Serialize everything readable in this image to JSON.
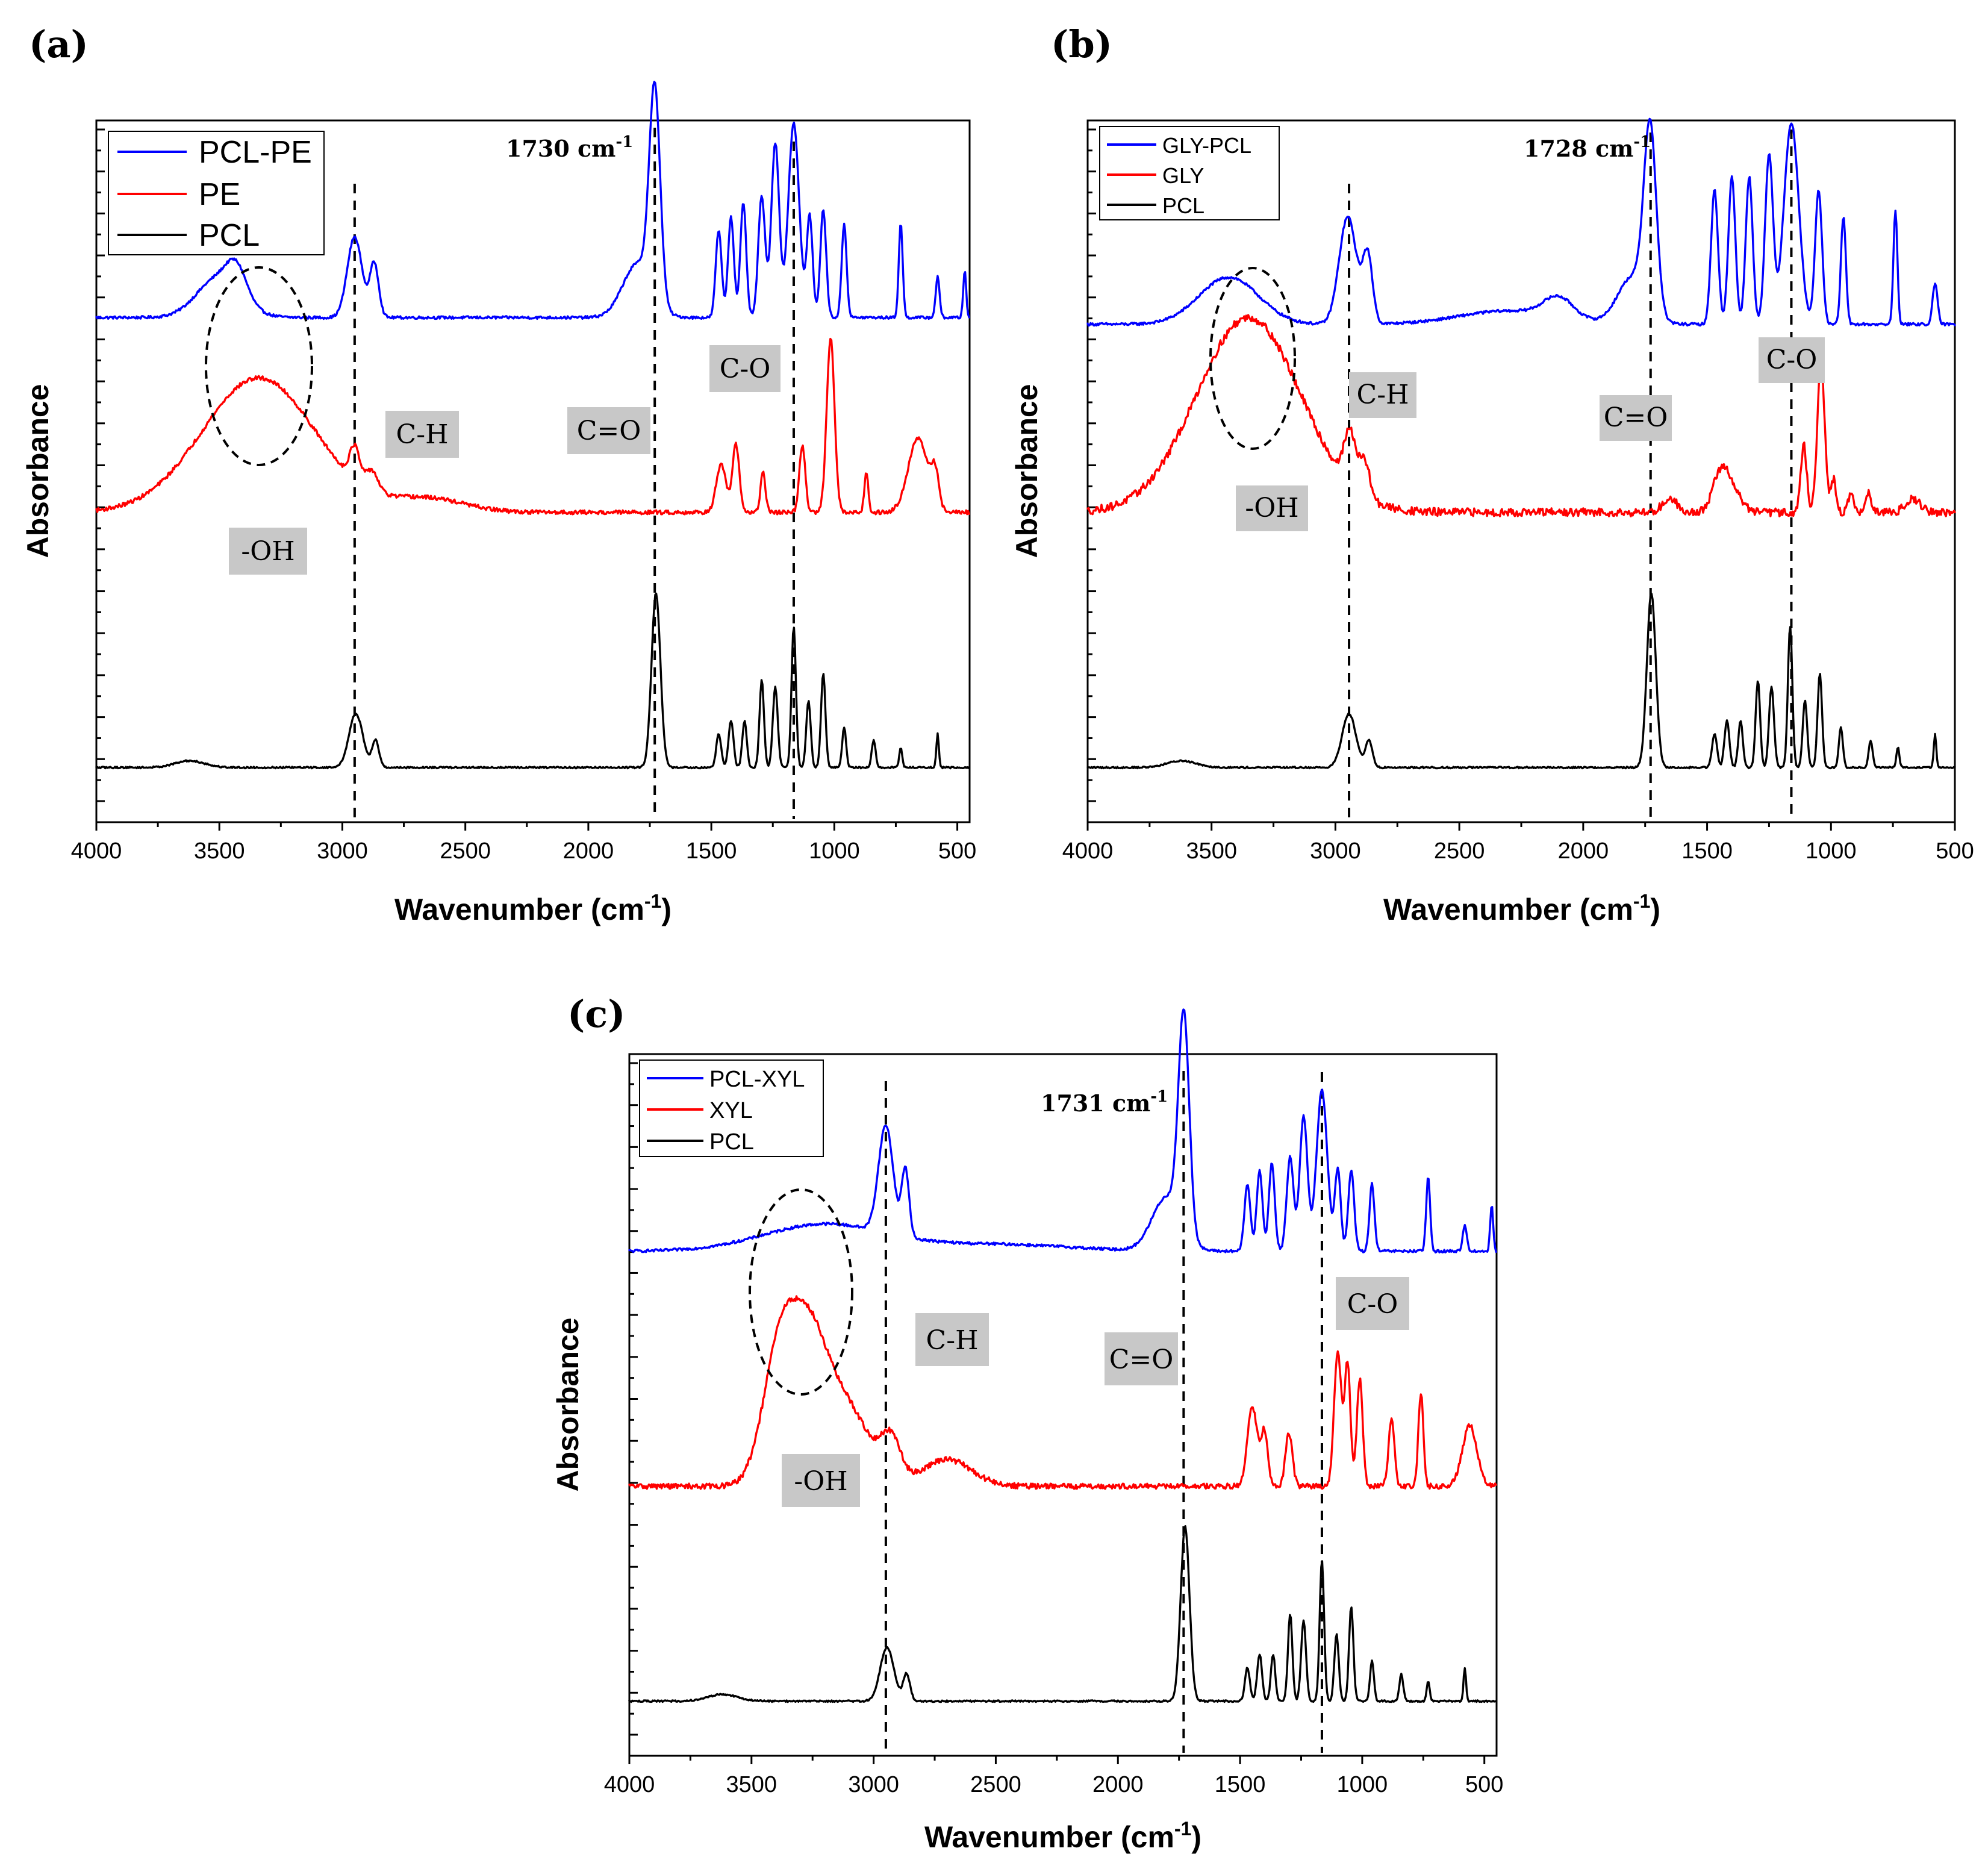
{
  "chart_data": [
    {
      "type": "line",
      "panel_label": "(a)",
      "xlabel": "Wavenumber (cm",
      "xlabel_sup": "-1",
      "xlabel_close": ")",
      "ylabel": "Absorbance",
      "xlim": [
        4000,
        450
      ],
      "x_ticks": [
        4000,
        3500,
        3000,
        2500,
        2000,
        1500,
        1000,
        500
      ],
      "x_tick_labels": [
        "4000",
        "3500",
        "3000",
        "2500",
        "2000",
        "1500",
        "1000",
        "500"
      ],
      "ylim": [
        0,
        1
      ],
      "legend": [
        "PCL-PE",
        "PE",
        "PCL"
      ],
      "series": [
        {
          "name": "PCL-PE",
          "color": "#0000ff",
          "baseline": 0.72,
          "noise": 0.002,
          "tail": 0.0,
          "peaks": [
            [
              3500,
              0.06,
              90
            ],
            [
              3430,
              0.04,
              40
            ],
            [
              2950,
              0.12,
              30
            ],
            [
              2870,
              0.08,
              18
            ],
            [
              1730,
              0.31,
              22
            ],
            [
              1800,
              0.08,
              60
            ],
            [
              1470,
              0.13,
              12
            ],
            [
              1420,
              0.15,
              12
            ],
            [
              1370,
              0.17,
              12
            ],
            [
              1295,
              0.18,
              14
            ],
            [
              1240,
              0.26,
              16
            ],
            [
              1165,
              0.29,
              22
            ],
            [
              1100,
              0.15,
              12
            ],
            [
              1045,
              0.16,
              12
            ],
            [
              960,
              0.14,
              10
            ],
            [
              730,
              0.14,
              8
            ],
            [
              580,
              0.06,
              8
            ],
            [
              470,
              0.07,
              6
            ]
          ]
        },
        {
          "name": "PE",
          "color": "#ff0000",
          "baseline": 0.43,
          "noise": 0.003,
          "tail": 0.0,
          "peaks": [
            [
              3340,
              0.2,
              230
            ],
            [
              2950,
              0.05,
              20
            ],
            [
              2880,
              0.03,
              25
            ],
            [
              2650,
              0.02,
              150
            ],
            [
              1460,
              0.07,
              20
            ],
            [
              1400,
              0.1,
              14
            ],
            [
              1290,
              0.06,
              10
            ],
            [
              1130,
              0.1,
              12
            ],
            [
              1015,
              0.26,
              16
            ],
            [
              870,
              0.06,
              8
            ],
            [
              660,
              0.11,
              40
            ],
            [
              590,
              0.05,
              15
            ]
          ]
        },
        {
          "name": "PCL",
          "color": "#000000",
          "baseline": 0.05,
          "noise": 0.0012,
          "tail": 0.0,
          "peaks": [
            [
              3620,
              0.01,
              60
            ],
            [
              2945,
              0.08,
              28
            ],
            [
              2865,
              0.04,
              14
            ],
            [
              1725,
              0.26,
              18
            ],
            [
              1470,
              0.05,
              10
            ],
            [
              1420,
              0.07,
              10
            ],
            [
              1365,
              0.07,
              9
            ],
            [
              1295,
              0.13,
              9
            ],
            [
              1240,
              0.12,
              10
            ],
            [
              1165,
              0.21,
              9
            ],
            [
              1105,
              0.1,
              9
            ],
            [
              1045,
              0.14,
              9
            ],
            [
              960,
              0.06,
              8
            ],
            [
              840,
              0.04,
              8
            ],
            [
              730,
              0.03,
              6
            ],
            [
              580,
              0.05,
              5
            ]
          ]
        }
      ],
      "peak_annotation": {
        "text": "1730 cm",
        "sup": "-1"
      },
      "band_labels": [
        "C-H",
        "C=O",
        "C-O",
        "-OH"
      ]
    },
    {
      "type": "line",
      "panel_label": "(b)",
      "xlabel": "Wavenumber (cm",
      "xlabel_sup": "-1",
      "xlabel_close": ")",
      "ylabel": "Absorbance",
      "xlim": [
        4000,
        500
      ],
      "x_ticks": [
        4000,
        3500,
        3000,
        2500,
        2000,
        1500,
        1000,
        500
      ],
      "x_tick_labels": [
        "4000",
        "3500",
        "3000",
        "2500",
        "2000",
        "1500",
        "1000",
        "500"
      ],
      "ylim": [
        0,
        1
      ],
      "legend": [
        "GLY-PCL",
        "GLY",
        "PCL"
      ],
      "series": [
        {
          "name": "GLY-PCL",
          "color": "#0000ff",
          "baseline": 0.71,
          "noise": 0.002,
          "tail": 0.0,
          "peaks": [
            [
              3430,
              0.07,
              120
            ],
            [
              2950,
              0.16,
              35
            ],
            [
              2870,
              0.1,
              20
            ],
            [
              2300,
              0.02,
              200
            ],
            [
              2100,
              0.03,
              60
            ],
            [
              1730,
              0.27,
              25
            ],
            [
              1800,
              0.07,
              60
            ],
            [
              1470,
              0.2,
              14
            ],
            [
              1400,
              0.22,
              14
            ],
            [
              1330,
              0.22,
              14
            ],
            [
              1250,
              0.25,
              16
            ],
            [
              1160,
              0.3,
              30
            ],
            [
              1050,
              0.2,
              14
            ],
            [
              950,
              0.16,
              10
            ],
            [
              740,
              0.17,
              8
            ],
            [
              580,
              0.06,
              10
            ]
          ]
        },
        {
          "name": "GLY",
          "color": "#ff0000",
          "baseline": 0.43,
          "noise": 0.006,
          "tail": 0.0,
          "peaks": [
            [
              3350,
              0.29,
              210
            ],
            [
              2940,
              0.08,
              25
            ],
            [
              2880,
              0.05,
              20
            ],
            [
              1650,
              0.02,
              30
            ],
            [
              1450,
              0.04,
              30
            ],
            [
              1410,
              0.04,
              40
            ],
            [
              1110,
              0.1,
              12
            ],
            [
              1040,
              0.22,
              15
            ],
            [
              990,
              0.05,
              10
            ],
            [
              920,
              0.03,
              10
            ],
            [
              850,
              0.03,
              10
            ],
            [
              670,
              0.02,
              30
            ]
          ]
        },
        {
          "name": "PCL",
          "color": "#000000",
          "baseline": 0.05,
          "noise": 0.0012,
          "tail": 0.0,
          "peaks": [
            [
              3620,
              0.01,
              60
            ],
            [
              2945,
              0.08,
              28
            ],
            [
              2865,
              0.04,
              14
            ],
            [
              1725,
              0.26,
              18
            ],
            [
              1470,
              0.05,
              10
            ],
            [
              1420,
              0.07,
              10
            ],
            [
              1365,
              0.07,
              9
            ],
            [
              1295,
              0.13,
              9
            ],
            [
              1240,
              0.12,
              10
            ],
            [
              1165,
              0.21,
              9
            ],
            [
              1105,
              0.1,
              9
            ],
            [
              1045,
              0.14,
              9
            ],
            [
              960,
              0.06,
              8
            ],
            [
              840,
              0.04,
              8
            ],
            [
              730,
              0.03,
              6
            ],
            [
              580,
              0.05,
              5
            ]
          ]
        }
      ],
      "peak_annotation": {
        "text": "1728 cm",
        "sup": "-1"
      },
      "band_labels": [
        "C-H",
        "C=O",
        "C-O",
        "-OH"
      ]
    },
    {
      "type": "line",
      "panel_label": "(c)",
      "xlabel": "Wavenumber (cm",
      "xlabel_sup": "-1",
      "xlabel_close": ")",
      "ylabel": "Absorbance",
      "xlim": [
        4000,
        450
      ],
      "x_ticks": [
        4000,
        3500,
        3000,
        2500,
        2000,
        1500,
        1000,
        500
      ],
      "x_tick_labels": [
        "4000",
        "3500",
        "3000",
        "2500",
        "2000",
        "1500",
        "1000",
        "500"
      ],
      "ylim": [
        0,
        1
      ],
      "legend": [
        "PCL-XYL",
        "XYL",
        "PCL"
      ],
      "series": [
        {
          "name": "PCL-XYL",
          "color": "#0000ff",
          "baseline": 0.72,
          "noise": 0.002,
          "tail": 0.0,
          "peaks": [
            [
              3200,
              0.04,
              250
            ],
            [
              2950,
              0.16,
              30
            ],
            [
              2870,
              0.1,
              15
            ],
            [
              2500,
              0.01,
              300
            ],
            [
              1730,
              0.32,
              22
            ],
            [
              1800,
              0.08,
              60
            ],
            [
              1470,
              0.1,
              12
            ],
            [
              1420,
              0.12,
              12
            ],
            [
              1370,
              0.13,
              12
            ],
            [
              1295,
              0.14,
              14
            ],
            [
              1240,
              0.2,
              16
            ],
            [
              1165,
              0.24,
              22
            ],
            [
              1100,
              0.12,
              12
            ],
            [
              1045,
              0.12,
              12
            ],
            [
              960,
              0.1,
              10
            ],
            [
              730,
              0.11,
              8
            ],
            [
              580,
              0.04,
              8
            ],
            [
              470,
              0.07,
              6
            ]
          ]
        },
        {
          "name": "XYL",
          "color": "#ff0000",
          "baseline": 0.37,
          "noise": 0.004,
          "tail": 0.0,
          "peaks": [
            [
              3380,
              0.21,
              70
            ],
            [
              3260,
              0.17,
              70
            ],
            [
              3120,
              0.12,
              100
            ],
            [
              2930,
              0.06,
              40
            ],
            [
              2700,
              0.04,
              100
            ],
            [
              1450,
              0.12,
              20
            ],
            [
              1400,
              0.08,
              14
            ],
            [
              1300,
              0.08,
              14
            ],
            [
              1100,
              0.2,
              15
            ],
            [
              1060,
              0.18,
              12
            ],
            [
              1010,
              0.16,
              12
            ],
            [
              880,
              0.1,
              12
            ],
            [
              760,
              0.14,
              10
            ],
            [
              560,
              0.09,
              30
            ]
          ]
        },
        {
          "name": "PCL",
          "color": "#000000",
          "baseline": 0.05,
          "noise": 0.0012,
          "tail": 0.0,
          "peaks": [
            [
              3620,
              0.01,
              60
            ],
            [
              2945,
              0.08,
              28
            ],
            [
              2865,
              0.04,
              14
            ],
            [
              1725,
              0.26,
              18
            ],
            [
              1470,
              0.05,
              10
            ],
            [
              1420,
              0.07,
              10
            ],
            [
              1365,
              0.07,
              9
            ],
            [
              1295,
              0.13,
              9
            ],
            [
              1240,
              0.12,
              10
            ],
            [
              1165,
              0.21,
              9
            ],
            [
              1105,
              0.1,
              9
            ],
            [
              1045,
              0.14,
              9
            ],
            [
              960,
              0.06,
              8
            ],
            [
              840,
              0.04,
              8
            ],
            [
              730,
              0.03,
              6
            ],
            [
              580,
              0.05,
              5
            ]
          ]
        }
      ],
      "peak_annotation": {
        "text": "1731 cm",
        "sup": "-1"
      },
      "band_labels": [
        "C-H",
        "C=O",
        "C-O",
        "-OH"
      ]
    }
  ]
}
